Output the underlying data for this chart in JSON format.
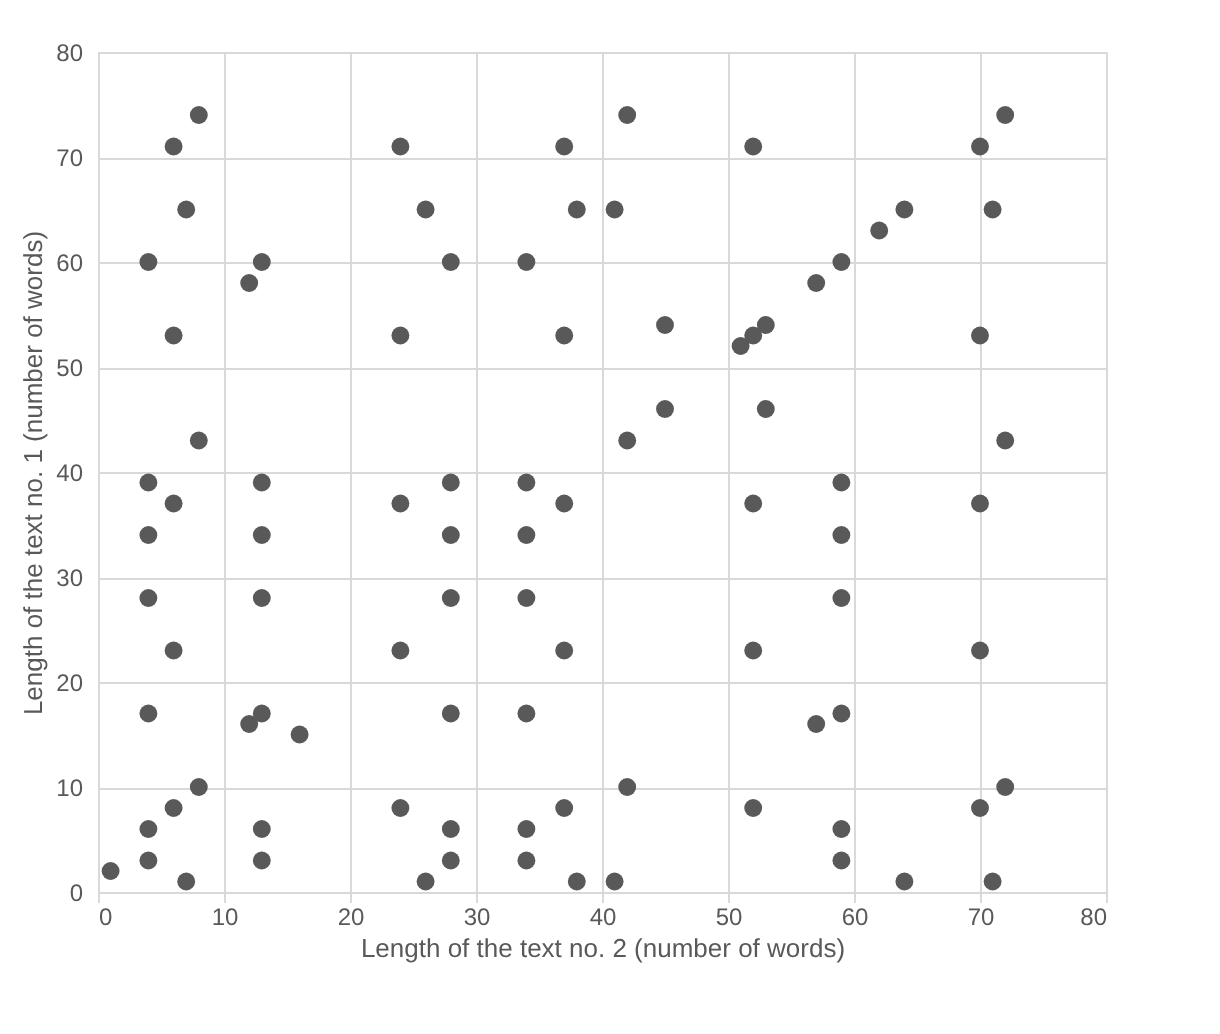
{
  "chart_data": {
    "type": "scatter",
    "xlabel": "Length of the text no. 2 (number of words)",
    "ylabel": "Length of the text no. 1 (number of words)",
    "xlim": [
      0,
      80
    ],
    "xticks": [
      0,
      10,
      20,
      30,
      40,
      50,
      60,
      70,
      80
    ],
    "ylim": [
      0,
      80
    ],
    "yticks": [
      0,
      10,
      20,
      30,
      40,
      50,
      60,
      70,
      80
    ],
    "grid": true,
    "marker": "circle",
    "series": [
      {
        "color": "#595959",
        "x": [
          1,
          4,
          4,
          4,
          4,
          4,
          4,
          4,
          6,
          6,
          6,
          6,
          6,
          7,
          7,
          8,
          8,
          8,
          12,
          12,
          13,
          13,
          13,
          13,
          13,
          13,
          13,
          16,
          24,
          24,
          24,
          24,
          24,
          26,
          26,
          28,
          28,
          28,
          28,
          28,
          28,
          28,
          34,
          34,
          34,
          34,
          34,
          34,
          34,
          37,
          37,
          37,
          37,
          37,
          38,
          38,
          41,
          41,
          42,
          42,
          42,
          45,
          45,
          51,
          52,
          52,
          52,
          52,
          52,
          53,
          53,
          57,
          57,
          59,
          59,
          59,
          59,
          59,
          59,
          59,
          62,
          64,
          64,
          70,
          70,
          70,
          70,
          70,
          71,
          71,
          72,
          72,
          72
        ],
        "values": [
          2,
          60,
          39,
          34,
          28,
          17,
          6,
          3,
          71,
          53,
          37,
          23,
          8,
          65,
          1,
          74,
          43,
          10,
          58,
          16,
          60,
          39,
          34,
          28,
          17,
          6,
          3,
          15,
          71,
          53,
          37,
          23,
          8,
          65,
          1,
          60,
          39,
          34,
          28,
          17,
          6,
          3,
          60,
          39,
          34,
          28,
          17,
          6,
          3,
          71,
          53,
          37,
          23,
          8,
          65,
          1,
          65,
          1,
          74,
          43,
          10,
          54,
          46,
          52,
          71,
          53,
          37,
          23,
          8,
          54,
          46,
          58,
          16,
          60,
          39,
          34,
          28,
          17,
          6,
          3,
          63,
          65,
          1,
          71,
          53,
          37,
          23,
          8,
          65,
          1,
          74,
          43,
          10
        ]
      }
    ]
  }
}
